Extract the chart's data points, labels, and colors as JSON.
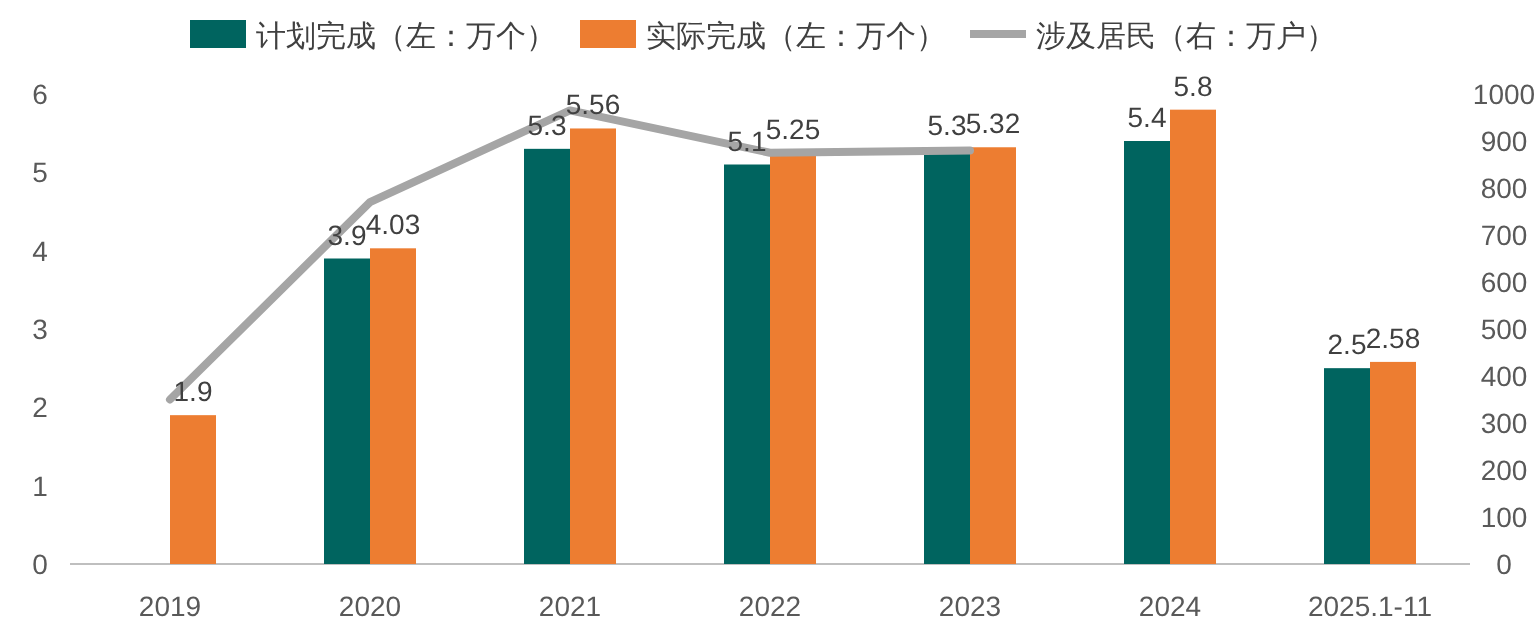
{
  "chart_data": {
    "type": "bar",
    "categories": [
      "2019",
      "2020",
      "2021",
      "2022",
      "2023",
      "2024",
      "2025.1-11"
    ],
    "series": [
      {
        "name": "计划完成（左：万个）",
        "color": "#00645f",
        "values": [
          null,
          3.9,
          5.3,
          5.1,
          5.3,
          5.4,
          2.5
        ],
        "value_labels": [
          null,
          "3.9",
          "5.3",
          "5.1",
          "5.3",
          "5.4",
          "2.5"
        ]
      },
      {
        "name": "实际完成（左：万个）",
        "color": "#ed7d31",
        "values": [
          1.9,
          4.03,
          5.56,
          5.25,
          5.32,
          5.8,
          2.58
        ],
        "value_labels": [
          "1.9",
          "4.03",
          "5.56",
          "5.25",
          "5.32",
          "5.8",
          "2.58"
        ]
      },
      {
        "name": "涉及居民（右：万户）",
        "type": "line",
        "axis": "y2",
        "color": "#a5a5a5",
        "values": [
          350,
          770,
          965,
          875,
          880,
          null,
          null
        ]
      }
    ],
    "ylim": [
      0,
      6
    ],
    "yticks": [
      0,
      1,
      2,
      3,
      4,
      5,
      6
    ],
    "y2lim": [
      0,
      1000
    ],
    "y2ticks": [
      0,
      100,
      200,
      300,
      400,
      500,
      600,
      700,
      800,
      900,
      1000
    ],
    "legend": "top",
    "grid": false
  }
}
